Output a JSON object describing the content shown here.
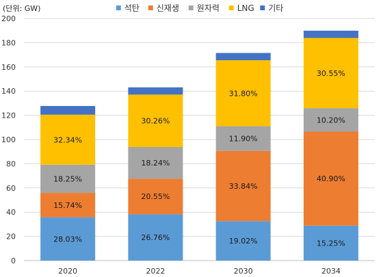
{
  "chart_data": {
    "type": "bar",
    "stacked": true,
    "unit_label": "(단위: GW)",
    "categories": [
      "2020",
      "2022",
      "2030",
      "2034"
    ],
    "ylim": [
      0,
      200
    ],
    "yticks": [
      0,
      20,
      40,
      60,
      80,
      100,
      120,
      140,
      160,
      180,
      200
    ],
    "grid": true,
    "legend_position": "top",
    "series": [
      {
        "name": "석탄",
        "color": "#5B9BD5",
        "values": [
          35.8,
          38.3,
          32.6,
          28.9
        ],
        "labels": [
          "28.03%",
          "26.76%",
          "19.02%",
          "15.25%"
        ]
      },
      {
        "name": "신재생",
        "color": "#ED7D31",
        "values": [
          20.1,
          29.4,
          58.0,
          77.6
        ],
        "labels": [
          "15.74%",
          "20.55%",
          "33.84%",
          "40.90%"
        ]
      },
      {
        "name": "원자력",
        "color": "#A5A5A5",
        "values": [
          23.3,
          26.1,
          20.4,
          19.4
        ],
        "labels": [
          "18.25%",
          "18.24%",
          "11.90%",
          "10.20%"
        ]
      },
      {
        "name": "LNG",
        "color": "#FFC000",
        "values": [
          41.3,
          43.3,
          54.5,
          58.0
        ],
        "labels": [
          "32.34%",
          "30.26%",
          "31.80%",
          "30.55%"
        ]
      },
      {
        "name": "기타",
        "color": "#4472C4",
        "values": [
          7.2,
          6.0,
          6.0,
          6.0
        ],
        "labels": [
          "",
          "",
          "",
          ""
        ]
      }
    ]
  }
}
